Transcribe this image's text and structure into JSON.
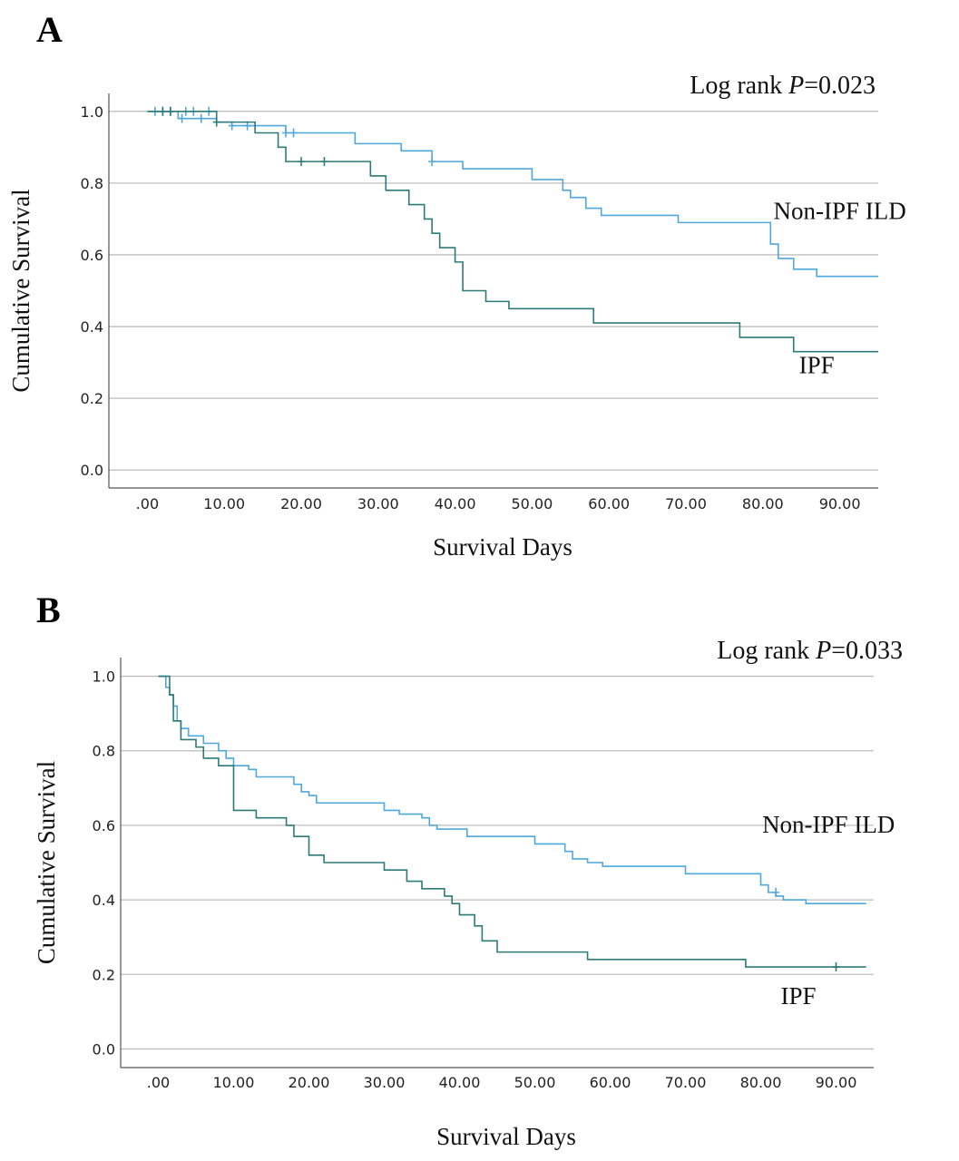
{
  "chart_data": [
    {
      "panel_label": "A",
      "type": "line",
      "subtype": "kaplan-meier",
      "xlabel": "Survival Days",
      "ylabel": "Cumulative Survival",
      "annotation_prefix": "Log rank ",
      "annotation_p": "P",
      "annotation_suffix": "=0.023",
      "xlim": [
        -5,
        95
      ],
      "ylim": [
        -0.05,
        1.05
      ],
      "x_ticks": [
        0,
        10,
        20,
        30,
        40,
        50,
        60,
        70,
        80,
        90
      ],
      "x_tick_labels": [
        ".00",
        "10.00",
        "20.00",
        "30.00",
        "40.00",
        "50.00",
        "60.00",
        "70.00",
        "80.00",
        "90.00"
      ],
      "y_ticks": [
        0,
        0.2,
        0.4,
        0.6,
        0.8,
        1.0
      ],
      "y_tick_labels": [
        "0.0",
        "0.2",
        "0.4",
        "0.6",
        "0.8",
        "1.0"
      ],
      "grid": "horizontal",
      "series": [
        {
          "name": "Non-IPF ILD",
          "color": "#4fa8dc",
          "label_at": [
            90,
            0.7
          ],
          "steps": [
            [
              0,
              1.0
            ],
            [
              4,
              0.98
            ],
            [
              9,
              0.97
            ],
            [
              11,
              0.96
            ],
            [
              18,
              0.94
            ],
            [
              27,
              0.91
            ],
            [
              33,
              0.89
            ],
            [
              37,
              0.86
            ],
            [
              41,
              0.84
            ],
            [
              50,
              0.81
            ],
            [
              54,
              0.78
            ],
            [
              55,
              0.76
            ],
            [
              57,
              0.73
            ],
            [
              59,
              0.71
            ],
            [
              69,
              0.69
            ],
            [
              81,
              0.63
            ],
            [
              82,
              0.59
            ],
            [
              84,
              0.56
            ],
            [
              87,
              0.54
            ],
            [
              95,
              0.54
            ]
          ],
          "censored": [
            [
              1,
              1.0
            ],
            [
              2,
              1.0
            ],
            [
              3,
              1.0
            ],
            [
              5,
              1.0
            ],
            [
              6,
              1.0
            ],
            [
              8,
              1.0
            ],
            [
              4.5,
              0.98
            ],
            [
              7,
              0.98
            ],
            [
              11,
              0.96
            ],
            [
              13,
              0.96
            ],
            [
              18,
              0.94
            ],
            [
              19,
              0.94
            ],
            [
              37,
              0.86
            ]
          ]
        },
        {
          "name": "IPF",
          "color": "#2e7a78",
          "label_at": [
            87,
            0.27
          ],
          "steps": [
            [
              0,
              1.0
            ],
            [
              9,
              0.97
            ],
            [
              14,
              0.94
            ],
            [
              17,
              0.9
            ],
            [
              18,
              0.86
            ],
            [
              29,
              0.82
            ],
            [
              31,
              0.78
            ],
            [
              34,
              0.74
            ],
            [
              36,
              0.7
            ],
            [
              37,
              0.66
            ],
            [
              38,
              0.62
            ],
            [
              40,
              0.58
            ],
            [
              41,
              0.5
            ],
            [
              44,
              0.47
            ],
            [
              47,
              0.45
            ],
            [
              58,
              0.41
            ],
            [
              77,
              0.37
            ],
            [
              84,
              0.33
            ],
            [
              95,
              0.33
            ]
          ],
          "censored": [
            [
              2,
              1.0
            ],
            [
              3,
              1.0
            ],
            [
              9,
              0.97
            ],
            [
              20,
              0.86
            ],
            [
              23,
              0.86
            ]
          ]
        }
      ]
    },
    {
      "panel_label": "B",
      "type": "line",
      "subtype": "kaplan-meier",
      "xlabel": "Survival Days",
      "ylabel": "Cumulative Survival",
      "annotation_prefix": "Log rank ",
      "annotation_p": "P",
      "annotation_suffix": "=0.033",
      "xlim": [
        -5,
        95
      ],
      "ylim": [
        -0.05,
        1.05
      ],
      "x_ticks": [
        0,
        10,
        20,
        30,
        40,
        50,
        60,
        70,
        80,
        90
      ],
      "x_tick_labels": [
        ".00",
        "10.00",
        "20.00",
        "30.00",
        "40.00",
        "50.00",
        "60.00",
        "70.00",
        "80.00",
        "90.00"
      ],
      "y_ticks": [
        0,
        0.2,
        0.4,
        0.6,
        0.8,
        1.0
      ],
      "y_tick_labels": [
        "0.0",
        "0.2",
        "0.4",
        "0.6",
        "0.8",
        "1.0"
      ],
      "grid": "horizontal",
      "series": [
        {
          "name": "Non-IPF ILD",
          "color": "#4fa8dc",
          "label_at": [
            89,
            0.58
          ],
          "steps": [
            [
              0,
              1.0
            ],
            [
              1,
              0.97
            ],
            [
              1.5,
              0.95
            ],
            [
              2,
              0.92
            ],
            [
              2.5,
              0.88
            ],
            [
              3,
              0.86
            ],
            [
              4,
              0.84
            ],
            [
              6,
              0.82
            ],
            [
              8,
              0.8
            ],
            [
              9,
              0.78
            ],
            [
              10,
              0.76
            ],
            [
              12,
              0.75
            ],
            [
              13,
              0.73
            ],
            [
              18,
              0.71
            ],
            [
              19,
              0.69
            ],
            [
              20,
              0.68
            ],
            [
              21,
              0.66
            ],
            [
              30,
              0.64
            ],
            [
              32,
              0.63
            ],
            [
              35,
              0.62
            ],
            [
              36,
              0.6
            ],
            [
              37,
              0.59
            ],
            [
              41,
              0.57
            ],
            [
              50,
              0.55
            ],
            [
              54,
              0.53
            ],
            [
              55,
              0.51
            ],
            [
              57,
              0.5
            ],
            [
              59,
              0.49
            ],
            [
              70,
              0.47
            ],
            [
              80,
              0.44
            ],
            [
              81,
              0.42
            ],
            [
              82,
              0.41
            ],
            [
              83,
              0.4
            ],
            [
              86,
              0.39
            ],
            [
              94,
              0.39
            ]
          ],
          "censored": [
            [
              82,
              0.42
            ]
          ]
        },
        {
          "name": "IPF",
          "color": "#2e7a78",
          "label_at": [
            85,
            0.12
          ],
          "steps": [
            [
              0,
              1.0
            ],
            [
              1.5,
              0.95
            ],
            [
              2,
              0.88
            ],
            [
              3,
              0.83
            ],
            [
              5,
              0.81
            ],
            [
              6,
              0.78
            ],
            [
              8,
              0.76
            ],
            [
              10,
              0.64
            ],
            [
              13,
              0.62
            ],
            [
              17,
              0.6
            ],
            [
              18,
              0.57
            ],
            [
              20,
              0.52
            ],
            [
              22,
              0.5
            ],
            [
              30,
              0.48
            ],
            [
              33,
              0.45
            ],
            [
              35,
              0.43
            ],
            [
              38,
              0.41
            ],
            [
              39,
              0.39
            ],
            [
              40,
              0.36
            ],
            [
              42,
              0.33
            ],
            [
              43,
              0.29
            ],
            [
              45,
              0.26
            ],
            [
              57,
              0.24
            ],
            [
              78,
              0.22
            ],
            [
              94,
              0.22
            ]
          ],
          "censored": [
            [
              90,
              0.22
            ]
          ]
        }
      ]
    }
  ]
}
